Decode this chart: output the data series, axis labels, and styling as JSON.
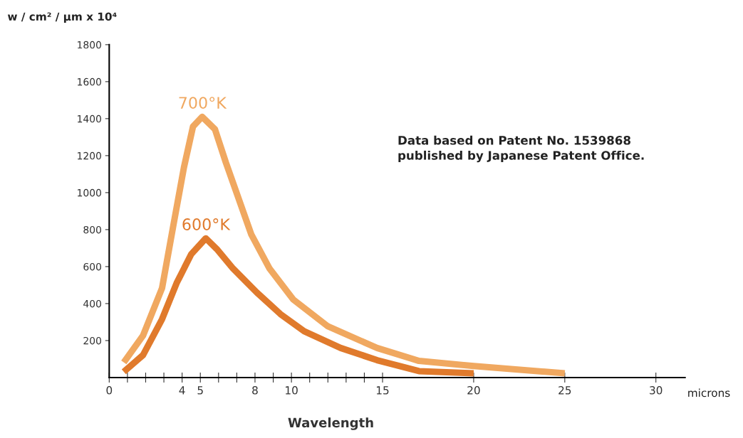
{
  "chart_data": {
    "type": "line",
    "ylabel": "w / cm² / µm x 10⁴",
    "xlabel": "Wavelength",
    "xlim": [
      0,
      31.6
    ],
    "ylim": [
      0,
      1800
    ],
    "xticks": [
      0,
      {
        "value": 1,
        "label": null
      },
      {
        "value": 2,
        "label": null
      },
      {
        "value": 3,
        "label": null
      },
      4,
      5,
      {
        "value": 6,
        "label": null
      },
      {
        "value": 7,
        "label": null
      },
      8,
      {
        "value": 9,
        "label": null
      },
      10,
      {
        "value": 11,
        "label": null
      },
      {
        "value": 12,
        "label": null
      },
      {
        "value": 13,
        "label": null
      },
      {
        "value": 14,
        "label": null
      },
      15,
      20,
      25,
      30
    ],
    "yticks": [
      200,
      400,
      600,
      800,
      1000,
      1200,
      1400,
      1600,
      1800
    ],
    "series": [
      {
        "name": "700°K",
        "color": "#f0a860",
        "x": [
          0.8,
          1.85,
          2.9,
          3.5,
          4.1,
          4.6,
          5.1,
          5.8,
          6.4,
          7.1,
          7.8,
          8.8,
          10.1,
          12.0,
          14.7,
          17,
          20,
          25
        ],
        "values": [
          82,
          226,
          484,
          812,
          1136,
          1358,
          1410,
          1343,
          1163,
          968,
          773,
          589,
          422,
          277,
          160,
          90,
          62,
          23
        ]
      },
      {
        "name": "600°K",
        "color": "#e07a2c",
        "x": [
          0.8,
          1.85,
          2.9,
          3.7,
          4.5,
          5.3,
          5.9,
          6.8,
          8.1,
          9.4,
          10.7,
          12.7,
          14.7,
          17,
          20
        ],
        "values": [
          31,
          121,
          316,
          511,
          667,
          753,
          695,
          589,
          460,
          343,
          250,
          160,
          94,
          35,
          23
        ]
      }
    ],
    "annotations": [
      "microns",
      "Data based on Patent No. 1539868\npublished by Japanese Patent Office."
    ],
    "grid": false,
    "legend": false,
    "marker": "none",
    "line_style": "solid"
  }
}
